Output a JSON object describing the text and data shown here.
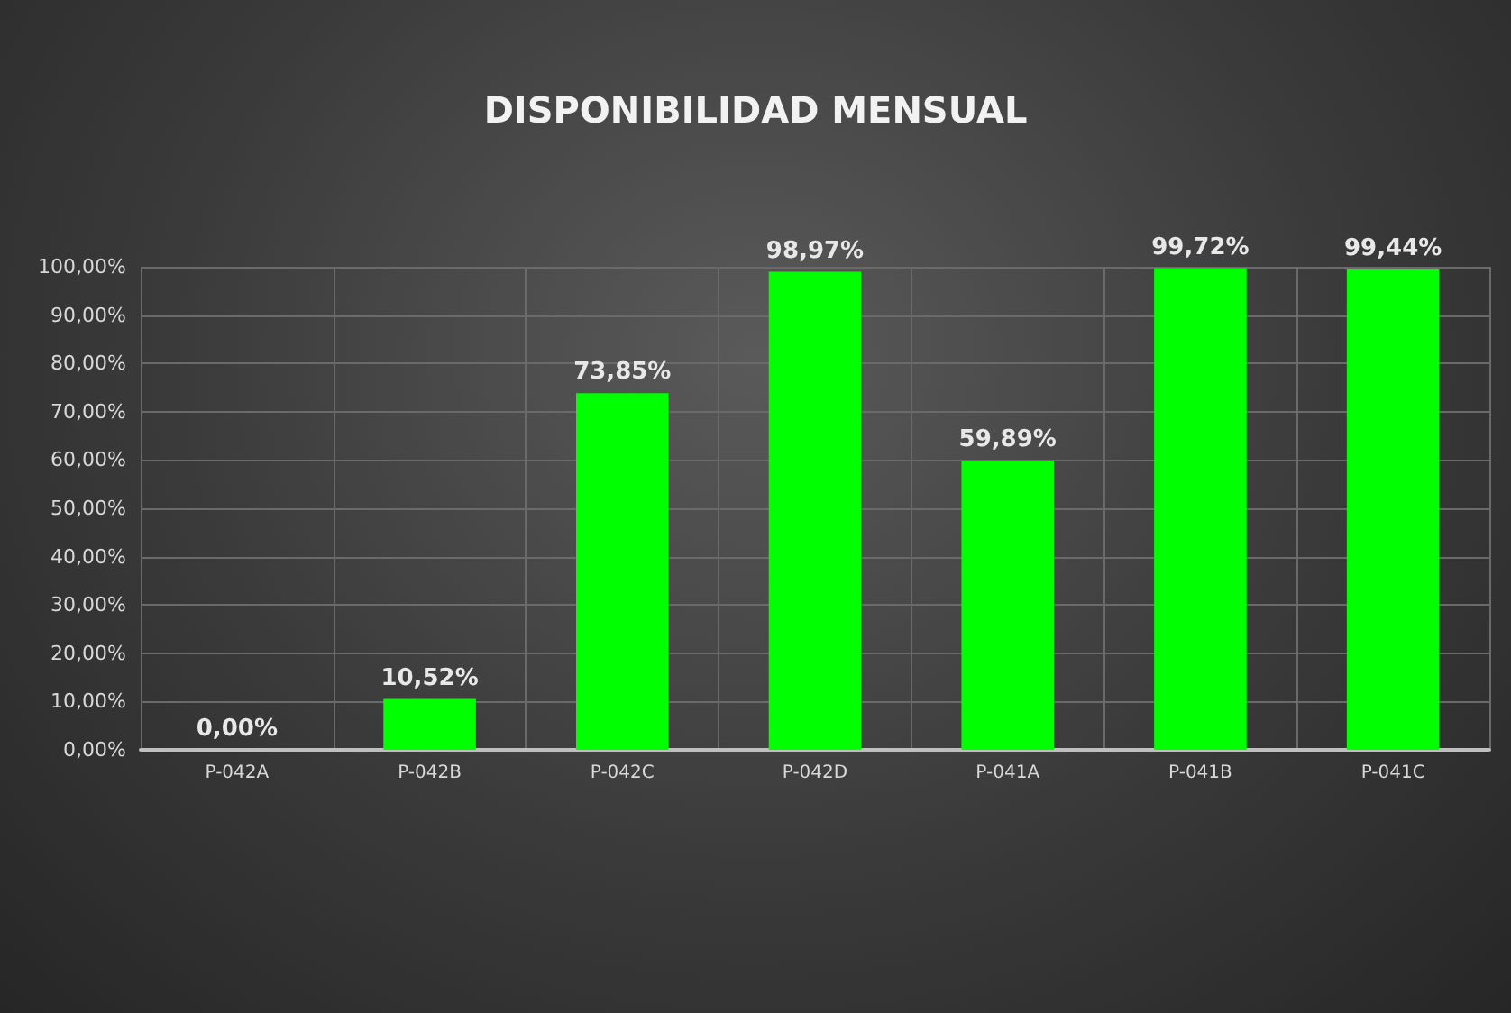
{
  "chart_data": {
    "type": "bar",
    "title": "DISPONIBILIDAD MENSUAL",
    "categories": [
      "P-042A",
      "P-042B",
      "P-042C",
      "P-042D",
      "P-041A",
      "P-041B",
      "P-041C"
    ],
    "values": [
      0,
      10.52,
      73.85,
      98.97,
      59.89,
      99.72,
      99.44
    ],
    "value_labels": [
      "0,00%",
      "10,52%",
      "73,85%",
      "98,97%",
      "59,89%",
      "99,72%",
      "99,44%"
    ],
    "color": "#00ff00",
    "ylim": [
      0,
      100
    ],
    "yticks": [
      {
        "value": 0,
        "label": "0,00%"
      },
      {
        "value": 10,
        "label": "10,00%"
      },
      {
        "value": 20,
        "label": "20,00%"
      },
      {
        "value": 30,
        "label": "30,00%"
      },
      {
        "value": 40,
        "label": "40,00%"
      },
      {
        "value": 50,
        "label": "50,00%"
      },
      {
        "value": 60,
        "label": "60,00%"
      },
      {
        "value": 70,
        "label": "70,00%"
      },
      {
        "value": 80,
        "label": "80,00%"
      },
      {
        "value": 90,
        "label": "90,00%"
      },
      {
        "value": 100,
        "label": "100,00%"
      }
    ],
    "grid": true
  }
}
